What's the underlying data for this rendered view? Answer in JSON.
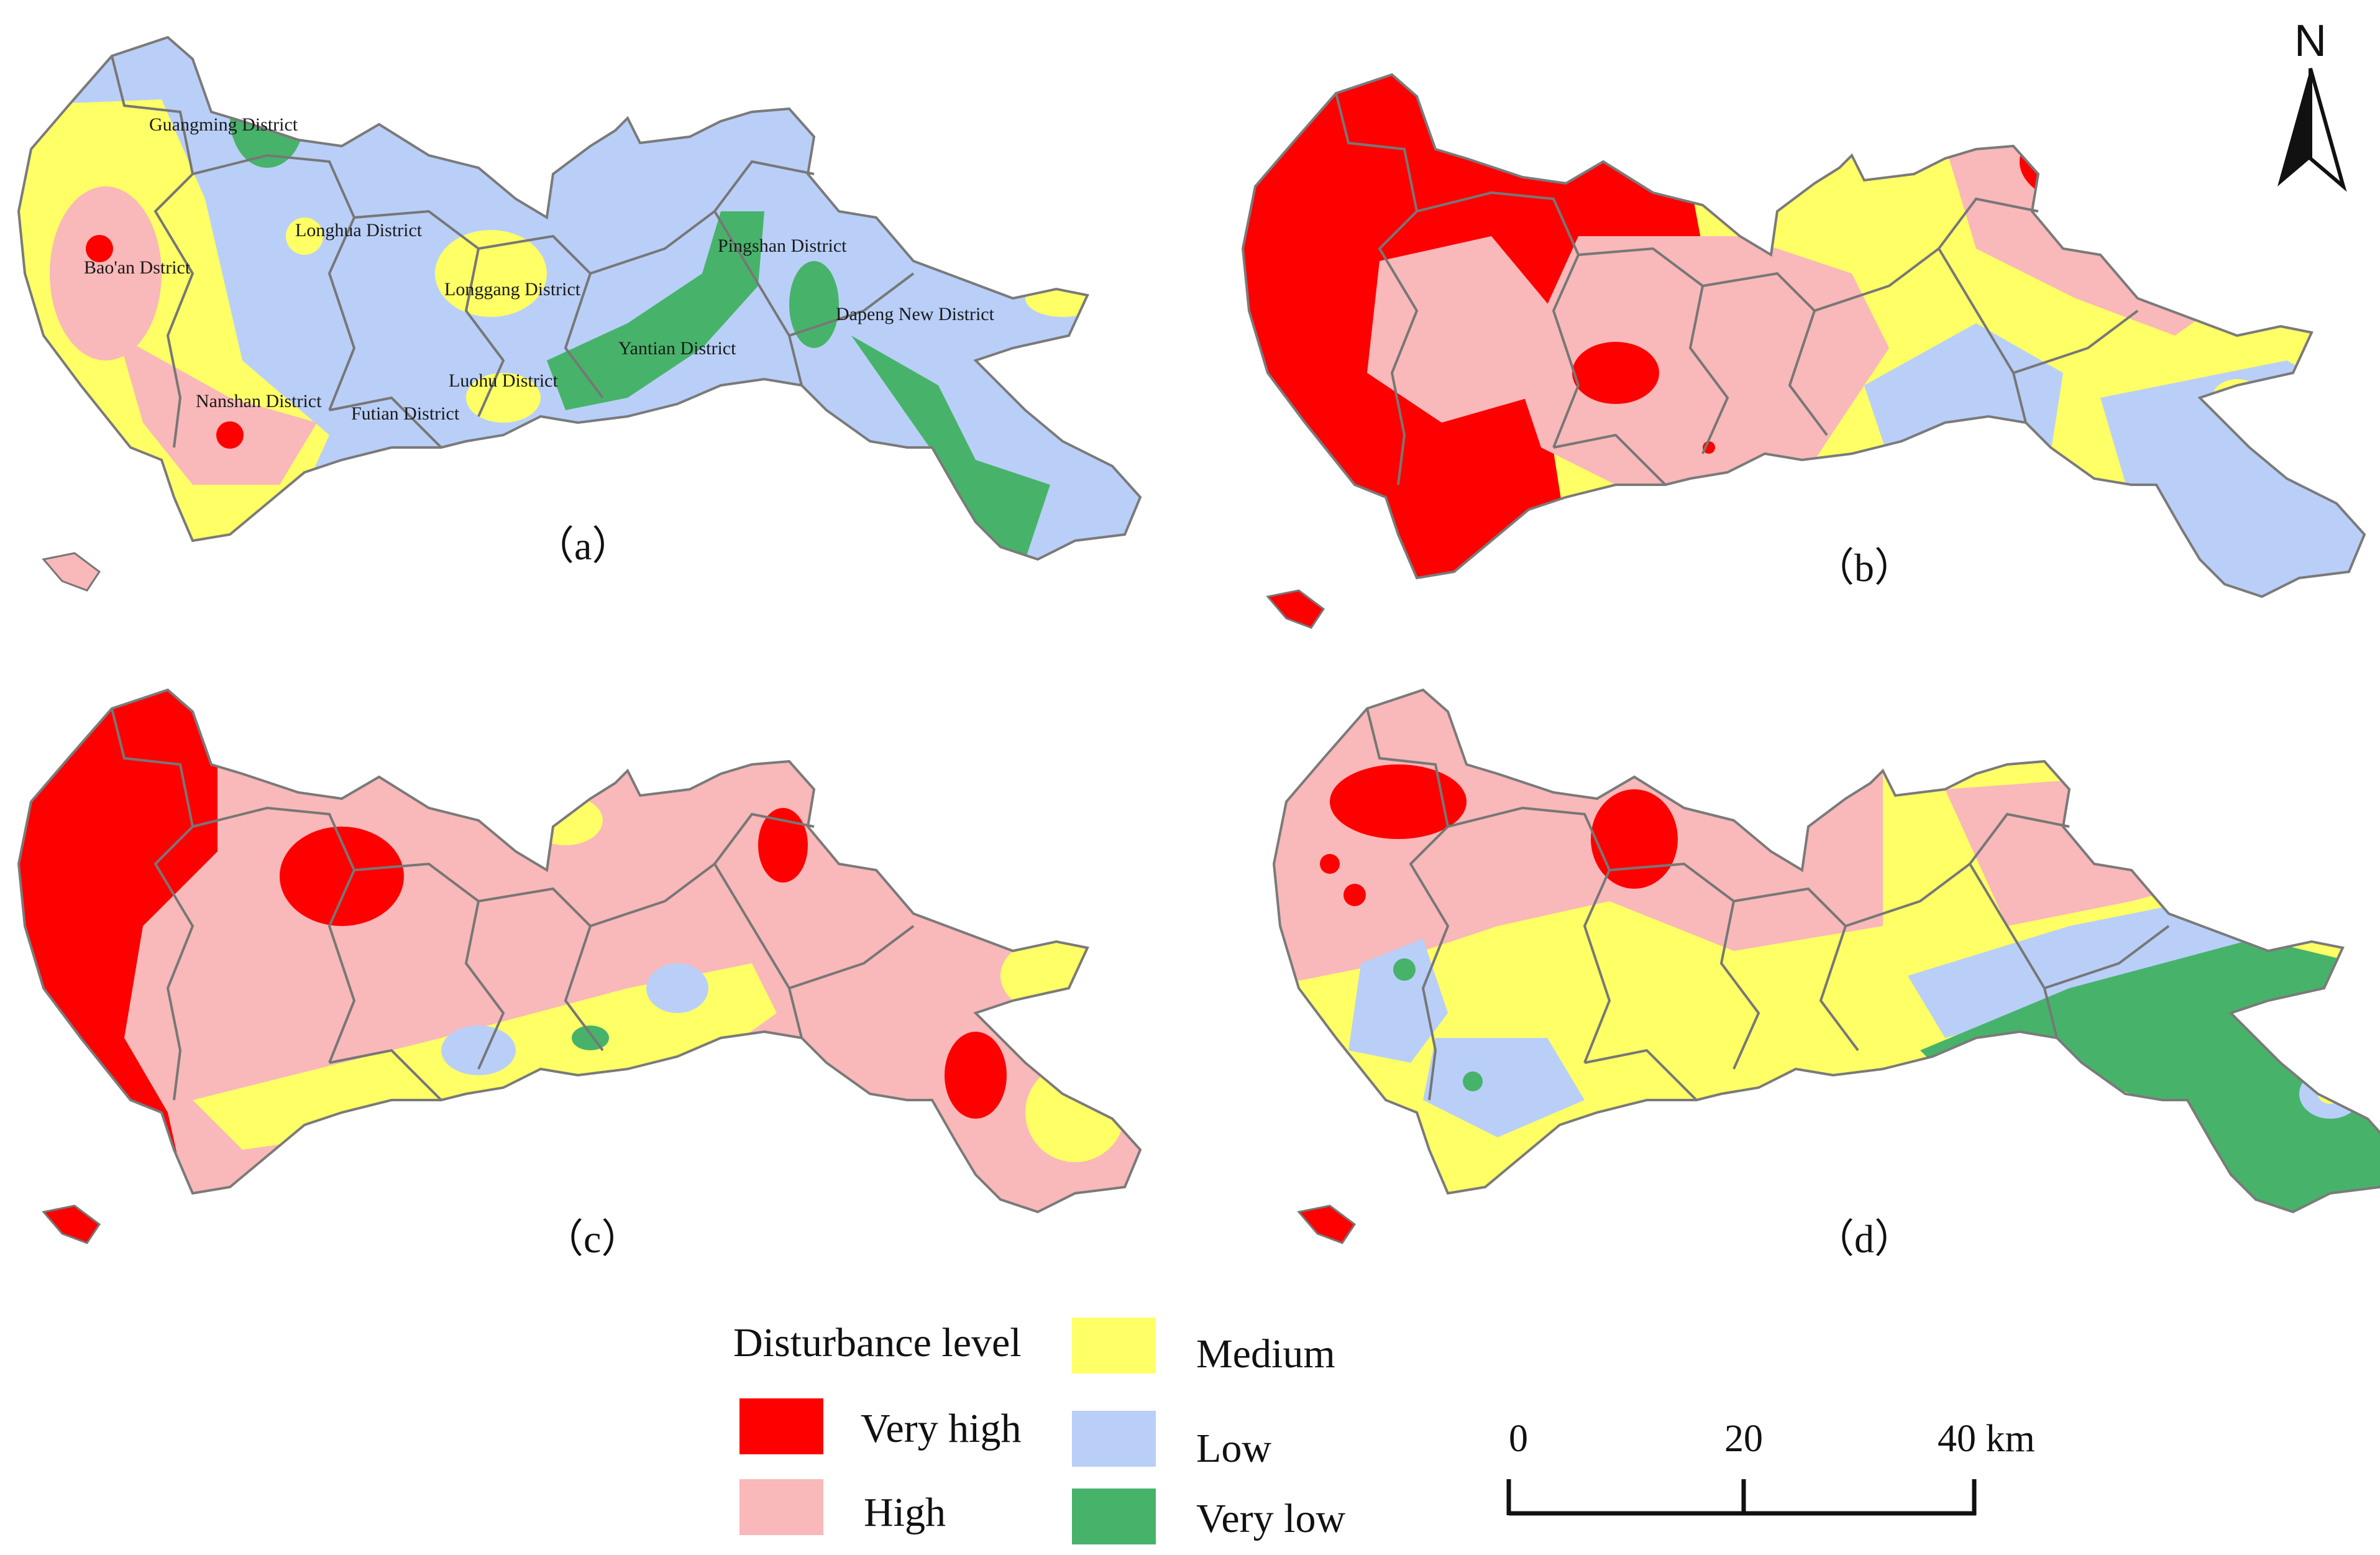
{
  "colors": {
    "very_high": "#ff0000",
    "high": "#f9b8b9",
    "medium": "#ffff66",
    "low": "#b9cff8",
    "very_low": "#47b36a",
    "boundary": "#7a7a7a"
  },
  "panels": [
    {
      "id": "a",
      "label": "（a）"
    },
    {
      "id": "b",
      "label": "（b）"
    },
    {
      "id": "c",
      "label": "（c）"
    },
    {
      "id": "d",
      "label": "（d）"
    }
  ],
  "districts": [
    {
      "name": "Guangming District"
    },
    {
      "name": "Longhua District"
    },
    {
      "name": "Bao'an Dstrict"
    },
    {
      "name": "Longgang District"
    },
    {
      "name": "Pingshan District"
    },
    {
      "name": "Dapeng New  District"
    },
    {
      "name": "Yantian District"
    },
    {
      "name": "Luohu District"
    },
    {
      "name": "Nanshan District"
    },
    {
      "name": "Futian District"
    }
  ],
  "legend": {
    "title": "Disturbance level",
    "items": [
      {
        "label": "Very high",
        "icon": "very-high-swatch"
      },
      {
        "label": "High",
        "icon": "high-swatch"
      },
      {
        "label": "Medium",
        "icon": "medium-swatch"
      },
      {
        "label": "Low",
        "icon": "low-swatch"
      },
      {
        "label": "Very low",
        "icon": "very-low-swatch"
      }
    ]
  },
  "scale_bar": {
    "ticks": [
      "0",
      "20"
    ],
    "end_label": "40 km"
  },
  "north_arrow": {
    "label": "N",
    "icon": "north-arrow-icon"
  }
}
